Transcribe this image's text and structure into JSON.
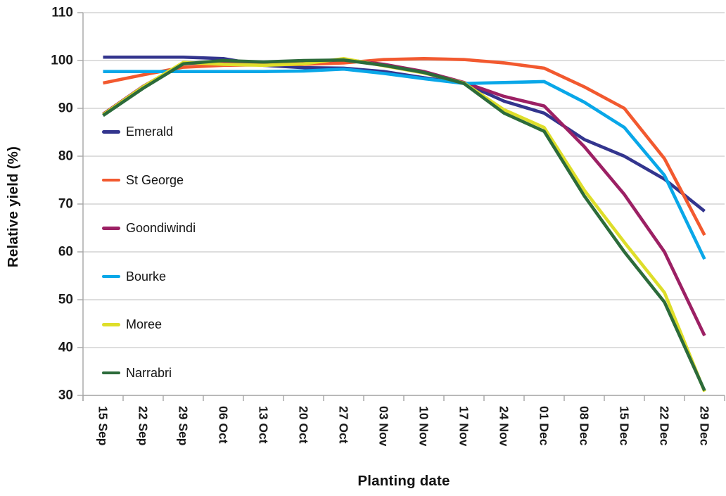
{
  "chart_data": {
    "type": "line",
    "title": "",
    "xlabel": "Planting date",
    "ylabel": "Relative yield (%)",
    "ylim": [
      30,
      110
    ],
    "y_ticks": [
      110,
      100,
      90,
      80,
      70,
      60,
      50,
      40,
      30
    ],
    "grid": true,
    "legend_position": "inside-left",
    "grid_color": "#c9c9c9",
    "axis_color": "#a6a6a6",
    "text_color": "#1a1a1a",
    "categories": [
      "15 Sep",
      "22 Sep",
      "29 Sep",
      "06 Oct",
      "13 Oct",
      "20 Oct",
      "27 Oct",
      "03 Nov",
      "10 Nov",
      "17 Nov",
      "24 Nov",
      "01 Dec",
      "08 Dec",
      "15 Dec",
      "22 Dec",
      "29 Dec"
    ],
    "series": [
      {
        "name": "Emerald",
        "color": "#33358E",
        "values": [
          100.7,
          100.7,
          100.7,
          100.4,
          99.0,
          98.5,
          98.4,
          97.7,
          96.4,
          95.3,
          91.5,
          89.0,
          83.5,
          80.0,
          75.2,
          68.5
        ]
      },
      {
        "name": "St George",
        "color": "#F2592F",
        "values": [
          95.3,
          97.0,
          98.6,
          99.0,
          99.1,
          99.2,
          99.5,
          100.2,
          100.4,
          100.2,
          99.5,
          98.4,
          94.5,
          90.0,
          79.5,
          63.5
        ]
      },
      {
        "name": "Goondiwindi",
        "color": "#9C2064",
        "values": [
          88.8,
          94.6,
          99.4,
          99.5,
          99.3,
          99.6,
          100.2,
          99.2,
          97.7,
          95.4,
          92.5,
          90.5,
          82.0,
          72.0,
          60.0,
          42.5
        ]
      },
      {
        "name": "Bourke",
        "color": "#09A7E8",
        "values": [
          97.7,
          97.7,
          97.7,
          97.7,
          97.7,
          97.8,
          98.2,
          97.3,
          96.2,
          95.2,
          95.4,
          95.6,
          91.3,
          86.0,
          76.0,
          58.5
        ]
      },
      {
        "name": "Moree",
        "color": "#DEDE2A",
        "values": [
          88.7,
          94.5,
          99.6,
          99.2,
          99.0,
          99.3,
          100.4,
          98.9,
          97.4,
          95.3,
          89.7,
          86.0,
          72.9,
          62.0,
          51.5,
          30.8
        ]
      },
      {
        "name": "Narrabri",
        "color": "#2C6B3A",
        "values": [
          88.5,
          94.2,
          99.3,
          100.0,
          99.7,
          100.0,
          100.1,
          99.0,
          97.5,
          95.2,
          89.0,
          85.2,
          71.7,
          60.0,
          49.5,
          31.0
        ]
      }
    ]
  }
}
